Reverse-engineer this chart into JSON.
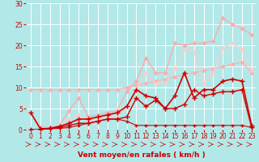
{
  "background_color": "#b2e8e8",
  "grid_color": "#c8e8e8",
  "xlabel": "Vent moyen/en rafales ( km/h )",
  "xlabel_color": "#cc0000",
  "xlabel_fontsize": 6.5,
  "tick_color": "#cc0000",
  "tick_fontsize": 5.5,
  "xlim": [
    -0.5,
    23.5
  ],
  "ylim": [
    0,
    30
  ],
  "yticks": [
    0,
    5,
    10,
    15,
    20,
    25,
    30
  ],
  "xticks": [
    0,
    1,
    2,
    3,
    4,
    5,
    6,
    7,
    8,
    9,
    10,
    11,
    12,
    13,
    14,
    15,
    16,
    17,
    18,
    19,
    20,
    21,
    22,
    23
  ],
  "line_smooth_x": [
    0,
    1,
    2,
    3,
    4,
    5,
    6,
    7,
    8,
    9,
    10,
    11,
    12,
    13,
    14,
    15,
    16,
    17,
    18,
    19,
    20,
    21,
    22,
    23
  ],
  "line_smooth_y": [
    9.5,
    9.5,
    9.5,
    9.5,
    9.5,
    9.5,
    9.5,
    9.5,
    9.5,
    9.5,
    10.0,
    10.5,
    11.0,
    11.5,
    12.0,
    12.5,
    13.0,
    13.5,
    14.0,
    14.5,
    15.0,
    15.5,
    16.0,
    13.5
  ],
  "line_smooth_color": "#ffb0b0",
  "line_smooth_marker": "D",
  "line_smooth_markersize": 2.0,
  "line_smooth_lw": 1.0,
  "line_rafales_high_x": [
    0,
    1,
    2,
    3,
    4,
    5,
    6,
    7,
    8,
    9,
    10,
    11,
    12,
    13,
    14,
    15,
    16,
    17,
    18,
    19,
    20,
    21,
    22,
    23
  ],
  "line_rafales_high_y": [
    4.0,
    0.5,
    0.5,
    1.0,
    4.5,
    7.5,
    3.0,
    3.5,
    4.0,
    4.5,
    9.0,
    11.5,
    17.0,
    13.5,
    13.5,
    20.5,
    20.0,
    20.5,
    20.5,
    21.0,
    26.5,
    25.0,
    24.0,
    22.5
  ],
  "line_rafales_high_color": "#ffaaaa",
  "line_rafales_high_marker": "D",
  "line_rafales_high_markersize": 2.0,
  "line_rafales_high_lw": 1.0,
  "line_rafales_mid_x": [
    0,
    1,
    2,
    3,
    4,
    5,
    6,
    7,
    8,
    9,
    10,
    11,
    12,
    13,
    14,
    15,
    16,
    17,
    18,
    19,
    20,
    21,
    22,
    23
  ],
  "line_rafales_mid_y": [
    4.0,
    0.3,
    0.5,
    1.0,
    2.5,
    3.5,
    2.0,
    2.5,
    3.0,
    3.5,
    5.5,
    9.5,
    13.5,
    11.0,
    11.0,
    14.5,
    19.0,
    18.5,
    11.0,
    13.5,
    19.5,
    20.5,
    19.0,
    14.0
  ],
  "line_rafales_mid_color": "#ffcccc",
  "line_rafales_mid_marker": "D",
  "line_rafales_mid_markersize": 2.0,
  "line_rafales_mid_lw": 1.0,
  "line_vent_high_x": [
    0,
    1,
    2,
    3,
    4,
    5,
    6,
    7,
    8,
    9,
    10,
    11,
    12,
    13,
    14,
    15,
    16,
    17,
    18,
    19,
    20,
    21,
    22,
    23
  ],
  "line_vent_high_y": [
    4.0,
    0.2,
    0.3,
    0.8,
    1.5,
    2.5,
    2.5,
    3.0,
    3.5,
    4.0,
    5.5,
    9.5,
    8.0,
    7.5,
    5.0,
    8.0,
    13.5,
    7.5,
    9.5,
    9.5,
    11.5,
    12.0,
    11.5,
    1.0
  ],
  "line_vent_high_color": "#cc0000",
  "line_vent_high_marker": "+",
  "line_vent_high_markersize": 4.0,
  "line_vent_high_lw": 1.2,
  "line_vent_mid_x": [
    0,
    1,
    2,
    3,
    4,
    5,
    6,
    7,
    8,
    9,
    10,
    11,
    12,
    13,
    14,
    15,
    16,
    17,
    18,
    19,
    20,
    21,
    22,
    23
  ],
  "line_vent_mid_y": [
    0.0,
    0.0,
    0.3,
    0.5,
    1.0,
    1.5,
    1.5,
    2.0,
    2.5,
    2.5,
    3.0,
    7.5,
    5.5,
    7.0,
    5.0,
    5.0,
    6.0,
    9.5,
    8.0,
    8.5,
    9.0,
    9.0,
    9.5,
    0.5
  ],
  "line_vent_mid_color": "#cc0000",
  "line_vent_mid_marker": "+",
  "line_vent_mid_markersize": 4.0,
  "line_vent_mid_lw": 1.0,
  "line_vent_low_x": [
    0,
    1,
    2,
    3,
    4,
    5,
    6,
    7,
    8,
    9,
    10,
    11,
    12,
    13,
    14,
    15,
    16,
    17,
    18,
    19,
    20,
    21,
    22,
    23
  ],
  "line_vent_low_y": [
    0.0,
    0.0,
    0.2,
    0.3,
    0.5,
    1.0,
    1.5,
    2.0,
    2.5,
    2.5,
    2.0,
    1.0,
    1.0,
    1.0,
    1.0,
    1.0,
    1.0,
    1.0,
    1.0,
    1.0,
    1.0,
    1.0,
    1.0,
    0.5
  ],
  "line_vent_low_color": "#cc0000",
  "line_vent_low_marker": "+",
  "line_vent_low_markersize": 3.5,
  "line_vent_low_lw": 0.8
}
